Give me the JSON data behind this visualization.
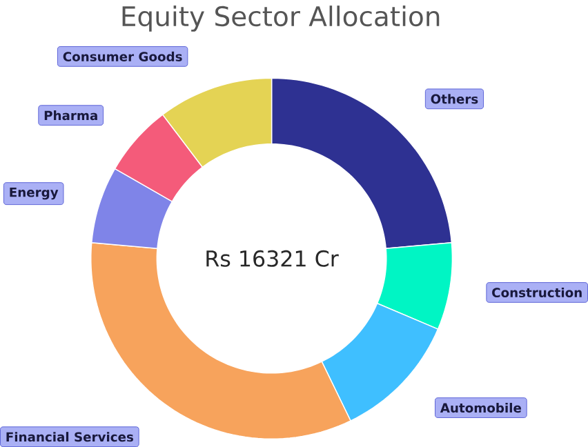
{
  "chart_data": {
    "type": "donut",
    "title": "Equity Sector Allocation",
    "categories": [
      "Others",
      "Construction",
      "Automobile",
      "Financial Services",
      "Energy",
      "Pharma",
      "Consumer Goods"
    ],
    "values": [
      23.6,
      7.8,
      11.4,
      33.6,
      6.9,
      6.4,
      10.3
    ],
    "colors": [
      "#2e3192",
      "#00f5c4",
      "#3fbfff",
      "#f7a35c",
      "#7f84e8",
      "#f45b7a",
      "#e4d354"
    ],
    "annotations": [
      "Rs 16321 Cr"
    ]
  }
}
